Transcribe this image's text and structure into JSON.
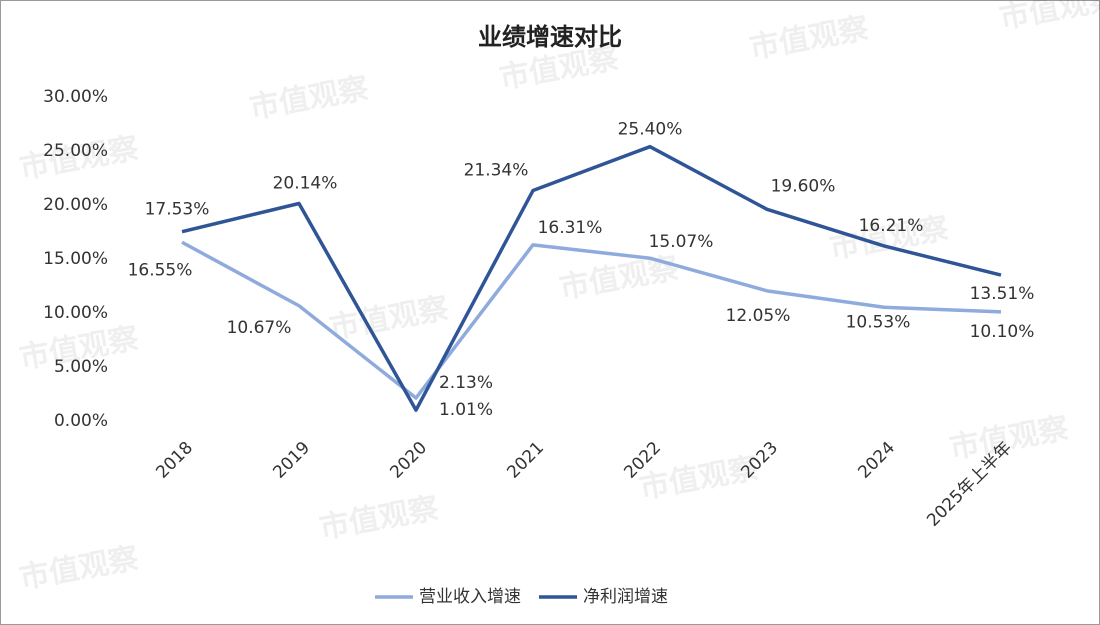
{
  "chart_data": {
    "type": "line",
    "title": "业绩增速对比",
    "watermark": "市值观察",
    "categories": [
      "2018",
      "2019",
      "2020",
      "2021",
      "2022",
      "2023",
      "2024",
      "2025年上半年"
    ],
    "series": [
      {
        "name": "营业收入增速",
        "color": "#8faadc",
        "values": [
          16.55,
          10.67,
          2.13,
          16.31,
          15.07,
          12.05,
          10.53,
          10.1
        ],
        "value_labels": [
          "16.55%",
          "10.67%",
          "2.13%",
          "16.31%",
          "15.07%",
          "12.05%",
          "10.53%",
          "10.10%"
        ]
      },
      {
        "name": "净利润增速",
        "color": "#2f5597",
        "values": [
          17.53,
          20.14,
          1.01,
          21.34,
          25.4,
          19.6,
          16.21,
          13.51
        ],
        "value_labels": [
          "17.53%",
          "20.14%",
          "1.01%",
          "21.34%",
          "25.40%",
          "19.60%",
          "16.21%",
          "13.51%"
        ]
      }
    ],
    "ylim": [
      0,
      30
    ],
    "yticks": [
      {
        "value": 0,
        "label": "0.00%"
      },
      {
        "value": 5,
        "label": "5.00%"
      },
      {
        "value": 10,
        "label": "10.00%"
      },
      {
        "value": 15,
        "label": "15.00%"
      },
      {
        "value": 20,
        "label": "20.00%"
      },
      {
        "value": 25,
        "label": "25.00%"
      },
      {
        "value": 30,
        "label": "30.00%"
      }
    ],
    "grid": false,
    "legend": "bottom"
  }
}
